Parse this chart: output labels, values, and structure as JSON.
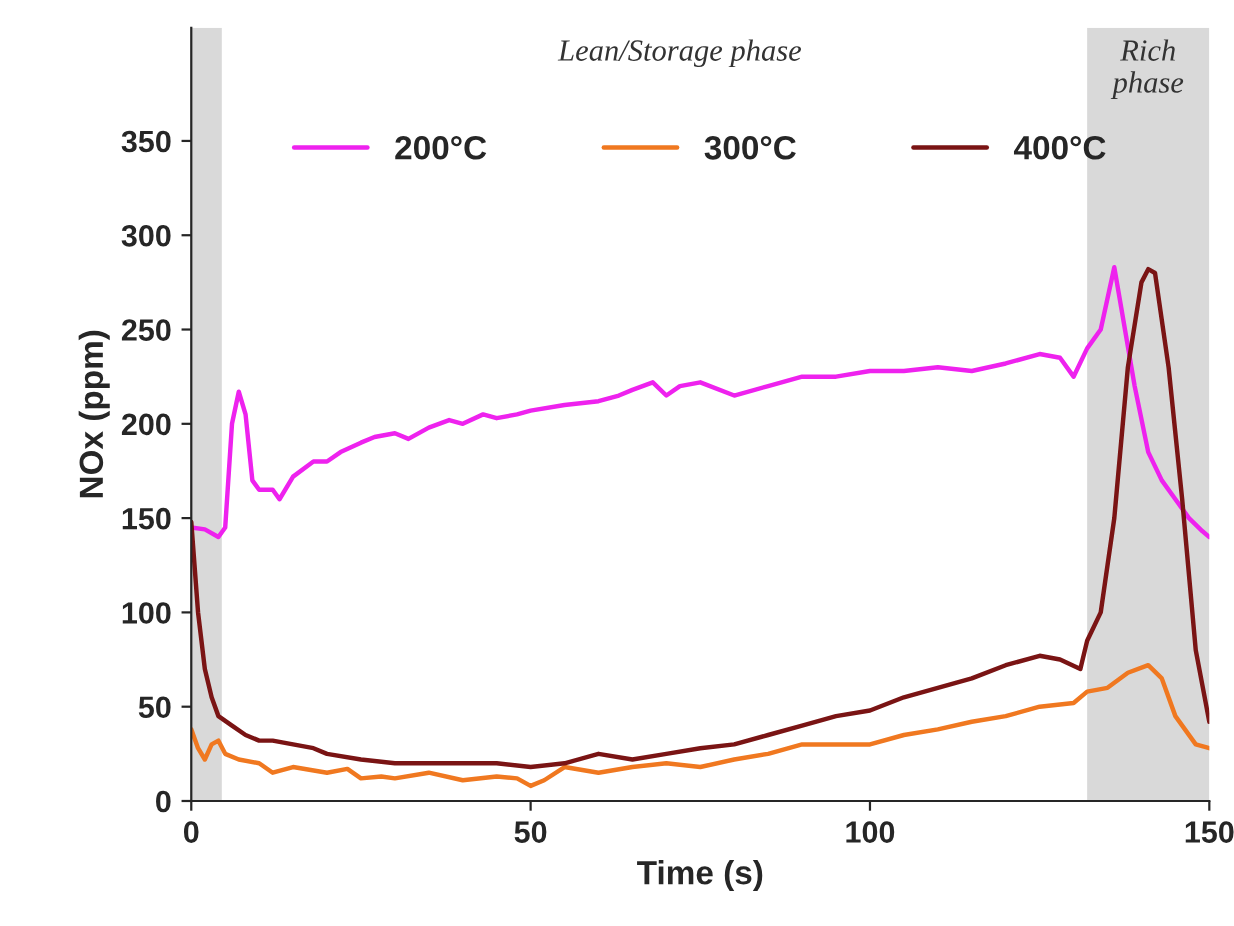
{
  "chart_data": {
    "type": "line",
    "xlabel": "Time (s)",
    "ylabel": "NOx (ppm)",
    "xlim": [
      0,
      150
    ],
    "xticks": [
      0,
      50,
      100,
      150
    ],
    "ylim": [
      0,
      410
    ],
    "yticks": [
      0,
      50,
      100,
      150,
      200,
      250,
      300,
      350
    ],
    "grid": false,
    "legend": "top",
    "marker": "none",
    "line_style": "solid",
    "annotations": [
      "Lean/Storage phase"
    ],
    "bands": [
      {
        "axis": "x",
        "from": 0,
        "to": 4.5,
        "color": "#d9d9d9"
      },
      {
        "axis": "x",
        "from": 132,
        "to": 150,
        "label": "Rich\nphase",
        "color": "#d9d9d9"
      }
    ],
    "series": [
      {
        "name": "200°C",
        "color": "#ee22ee",
        "x": [
          0,
          2,
          4,
          5,
          6,
          7,
          8,
          9,
          10,
          12,
          13,
          15,
          18,
          20,
          22,
          25,
          27,
          30,
          32,
          35,
          38,
          40,
          43,
          45,
          48,
          50,
          55,
          60,
          63,
          65,
          68,
          70,
          72,
          75,
          80,
          85,
          90,
          95,
          100,
          105,
          110,
          115,
          120,
          125,
          128,
          130,
          132,
          134,
          136,
          137,
          139,
          141,
          143,
          145,
          147,
          149,
          150
        ],
        "values": [
          145,
          144,
          140,
          145,
          200,
          217,
          205,
          170,
          165,
          165,
          160,
          172,
          180,
          180,
          185,
          190,
          193,
          195,
          192,
          198,
          202,
          200,
          205,
          203,
          205,
          207,
          210,
          212,
          215,
          218,
          222,
          215,
          220,
          222,
          215,
          220,
          225,
          225,
          228,
          228,
          230,
          228,
          232,
          237,
          235,
          225,
          240,
          250,
          283,
          262,
          220,
          185,
          170,
          160,
          150,
          143,
          140
        ]
      },
      {
        "name": "300°C",
        "color": "#f07820",
        "x": [
          0,
          1,
          2,
          3,
          4,
          5,
          7,
          10,
          12,
          15,
          20,
          23,
          25,
          28,
          30,
          35,
          40,
          45,
          48,
          50,
          52,
          55,
          60,
          65,
          70,
          75,
          80,
          85,
          90,
          95,
          100,
          105,
          110,
          115,
          120,
          125,
          130,
          132,
          135,
          138,
          141,
          143,
          145,
          148,
          150
        ],
        "values": [
          38,
          28,
          22,
          30,
          32,
          25,
          22,
          20,
          15,
          18,
          15,
          17,
          12,
          13,
          12,
          15,
          11,
          13,
          12,
          8,
          11,
          18,
          15,
          18,
          20,
          18,
          22,
          25,
          30,
          30,
          30,
          35,
          38,
          42,
          45,
          50,
          52,
          58,
          60,
          68,
          72,
          65,
          45,
          30,
          28
        ]
      },
      {
        "name": "400°C",
        "color": "#7a1414",
        "x": [
          0,
          1,
          2,
          3,
          4,
          6,
          8,
          10,
          12,
          15,
          18,
          20,
          25,
          30,
          35,
          40,
          45,
          50,
          55,
          60,
          65,
          70,
          75,
          80,
          85,
          90,
          95,
          100,
          105,
          110,
          115,
          120,
          125,
          128,
          131,
          132,
          134,
          136,
          138,
          140,
          141,
          142,
          144,
          146,
          148,
          150
        ],
        "values": [
          148,
          100,
          70,
          55,
          45,
          40,
          35,
          32,
          32,
          30,
          28,
          25,
          22,
          20,
          20,
          20,
          20,
          18,
          20,
          25,
          22,
          25,
          28,
          30,
          35,
          40,
          45,
          48,
          55,
          60,
          65,
          72,
          77,
          75,
          70,
          85,
          100,
          150,
          230,
          275,
          282,
          280,
          230,
          160,
          80,
          42
        ]
      }
    ]
  }
}
